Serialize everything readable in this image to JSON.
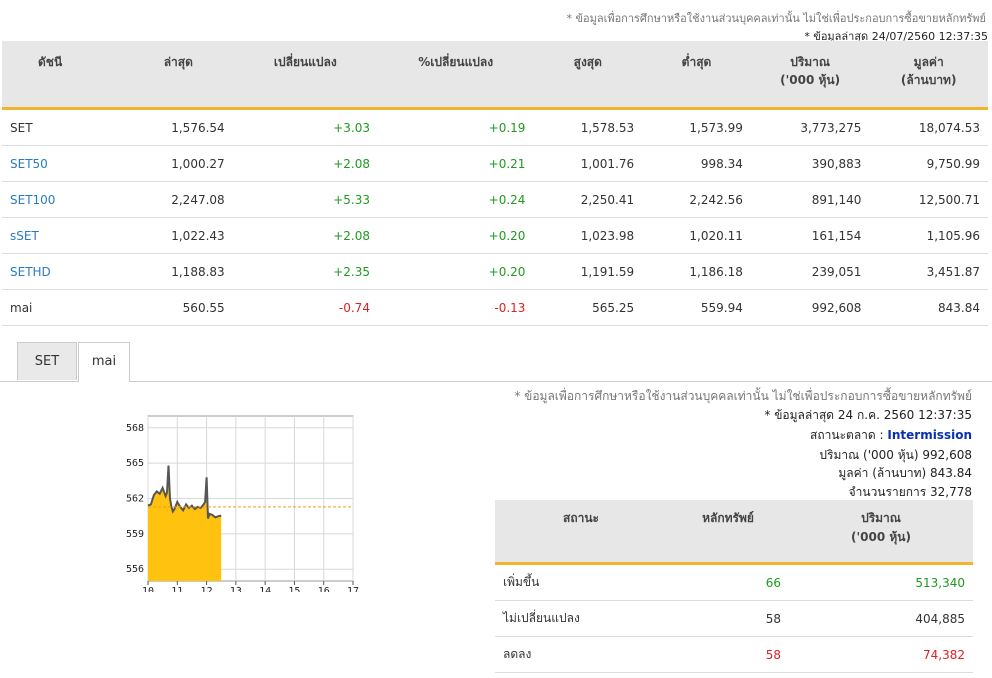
{
  "top_note": "* ข้อมูลเพื่อการศึกษาหรือใช้งานส่วนบุคคลเท่านั้น ไม่ใช่เพื่อประกอบการซื้อขายหลักทรัพย์",
  "top_updated": "* ข้อมูลล่าสุด 24/07/2560 12:37:35",
  "index_table": {
    "headers": [
      "ดัชนี",
      "ล่าสุด",
      "เปลี่ยนแปลง",
      "%เปลี่ยนแปลง",
      "สูงสุด",
      "ต่ำสุด",
      "ปริมาณ",
      "มูลค่า"
    ],
    "header_sub": [
      "",
      "",
      "",
      "",
      "",
      "",
      "('000 หุ้น)",
      "(ล้านบาท)"
    ],
    "rows": [
      {
        "name": "SET",
        "last": "1,576.54",
        "chg": "+3.03",
        "pchg": "+0.19",
        "high": "1,578.53",
        "low": "1,573.99",
        "vol": "3,773,275",
        "val": "18,074.53",
        "dir": "up",
        "link": false
      },
      {
        "name": "SET50",
        "last": "1,000.27",
        "chg": "+2.08",
        "pchg": "+0.21",
        "high": "1,001.76",
        "low": "998.34",
        "vol": "390,883",
        "val": "9,750.99",
        "dir": "up",
        "link": true
      },
      {
        "name": "SET100",
        "last": "2,247.08",
        "chg": "+5.33",
        "pchg": "+0.24",
        "high": "2,250.41",
        "low": "2,242.56",
        "vol": "891,140",
        "val": "12,500.71",
        "dir": "up",
        "link": true
      },
      {
        "name": "sSET",
        "last": "1,022.43",
        "chg": "+2.08",
        "pchg": "+0.20",
        "high": "1,023.98",
        "low": "1,020.11",
        "vol": "161,154",
        "val": "1,105.96",
        "dir": "up",
        "link": true
      },
      {
        "name": "SETHD",
        "last": "1,188.83",
        "chg": "+2.35",
        "pchg": "+0.20",
        "high": "1,191.59",
        "low": "1,186.18",
        "vol": "239,051",
        "val": "3,451.87",
        "dir": "up",
        "link": true
      },
      {
        "name": "mai",
        "last": "560.55",
        "chg": "-0.74",
        "pchg": "-0.13",
        "high": "565.25",
        "low": "559.94",
        "vol": "992,608",
        "val": "843.84",
        "dir": "down",
        "link": false
      }
    ]
  },
  "tabs": [
    {
      "label": "SET",
      "active": false
    },
    {
      "label": "mai",
      "active": true
    }
  ],
  "panel": {
    "note": "* ข้อมูลเพื่อการศึกษาหรือใช้งานส่วนบุคคลเท่านั้น ไม่ใช่เพื่อประกอบการซื้อขายหลักทรัพย์",
    "updated": "* ข้อมูลล่าสุด 24 ก.ค. 2560 12:37:35",
    "market_status_label": "สถานะตลาด :",
    "market_status": "Intermission",
    "volume_label": "ปริมาณ ('000 หุ้น)",
    "volume": "992,608",
    "value_label": "มูลค่า (ล้านบาท)",
    "value": "843.84",
    "deals_label": "จำนวนรายการ",
    "deals": "32,778"
  },
  "breadth_table": {
    "headers": [
      "สถานะ",
      "หลักทรัพย์",
      "ปริมาณ"
    ],
    "header_sub": [
      "",
      "",
      "('000 หุ้น)"
    ],
    "rows": [
      {
        "status": "เพิ่มขึ้น",
        "count": "66",
        "volume": "513,340",
        "color": "up"
      },
      {
        "status": "ไม่เปลี่ยนแปลง",
        "count": "58",
        "volume": "404,885",
        "color": "none"
      },
      {
        "status": "ลดลง",
        "count": "58",
        "volume": "74,382",
        "color": "down"
      }
    ]
  },
  "colors": {
    "up": "#1f9a1f",
    "down": "#e02020",
    "accent": "#f1b42b",
    "link": "#2a7bc4",
    "fill": "#ffc20e"
  },
  "chart_data": {
    "type": "area",
    "title": "",
    "x_ticks": [
      "10",
      "11",
      "12",
      "13",
      "14",
      "15",
      "16",
      "17"
    ],
    "y_ticks": [
      "556",
      "559",
      "562",
      "565",
      "568"
    ],
    "ylim": [
      555,
      569
    ],
    "xlim": [
      10,
      17
    ],
    "prev_close": 561.29,
    "x": [
      10.0,
      10.1,
      10.2,
      10.3,
      10.4,
      10.5,
      10.6,
      10.65,
      10.7,
      10.75,
      10.8,
      10.85,
      10.9,
      11.0,
      11.1,
      11.2,
      11.3,
      11.4,
      11.5,
      11.6,
      11.7,
      11.8,
      11.9,
      11.95,
      12.0,
      12.05,
      12.1,
      12.2,
      12.3,
      12.4,
      12.5
    ],
    "y": [
      561.4,
      561.5,
      562.3,
      562.6,
      562.4,
      562.9,
      562.2,
      562.5,
      564.8,
      562.0,
      561.3,
      560.9,
      561.1,
      561.7,
      561.3,
      561.0,
      561.5,
      561.2,
      561.4,
      561.1,
      561.3,
      561.2,
      561.5,
      561.7,
      563.8,
      560.3,
      560.7,
      560.6,
      560.4,
      560.5,
      560.55
    ]
  }
}
